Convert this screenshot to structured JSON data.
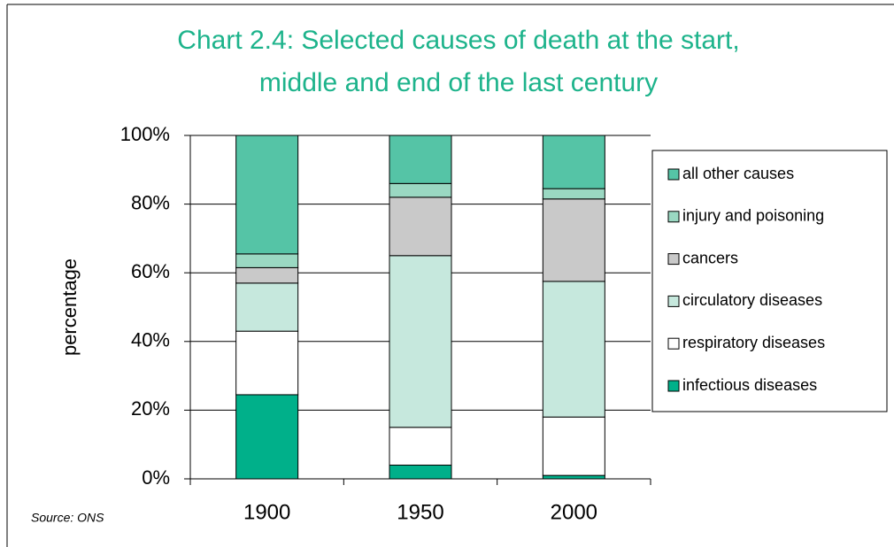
{
  "chart_data": {
    "type": "stacked_bar",
    "title": [
      "Chart 2.4: Selected causes of death at the start,",
      "middle and end of the last century"
    ],
    "y_label": "percentage",
    "source": "Source: ONS",
    "categories": [
      "1900",
      "1950",
      "2000"
    ],
    "series": [
      {
        "name": "infectious diseases",
        "color": "#00b08a",
        "values": [
          24.5,
          4,
          1
        ]
      },
      {
        "name": "respiratory diseases",
        "color": "#ffffff",
        "values": [
          18.5,
          11,
          17
        ]
      },
      {
        "name": "circulatory diseases",
        "color": "#c6e8dd",
        "values": [
          14,
          50,
          39.5
        ]
      },
      {
        "name": "cancers",
        "color": "#c9c9c9",
        "values": [
          4.5,
          17,
          24
        ]
      },
      {
        "name": "injury and poisoning",
        "color": "#9ad8c2",
        "values": [
          4,
          4,
          3
        ]
      },
      {
        "name": "all other causes",
        "color": "#55c4a6",
        "values": [
          34.5,
          14,
          15.5
        ]
      }
    ],
    "ylim": [
      0,
      100
    ],
    "yticks": [
      {
        "value": 0,
        "label": "0%"
      },
      {
        "value": 20,
        "label": "20%"
      },
      {
        "value": 40,
        "label": "40%"
      },
      {
        "value": 60,
        "label": "60%"
      },
      {
        "value": 80,
        "label": "80%"
      },
      {
        "value": 100,
        "label": "100%"
      }
    ],
    "grid": true,
    "legend": "right"
  }
}
